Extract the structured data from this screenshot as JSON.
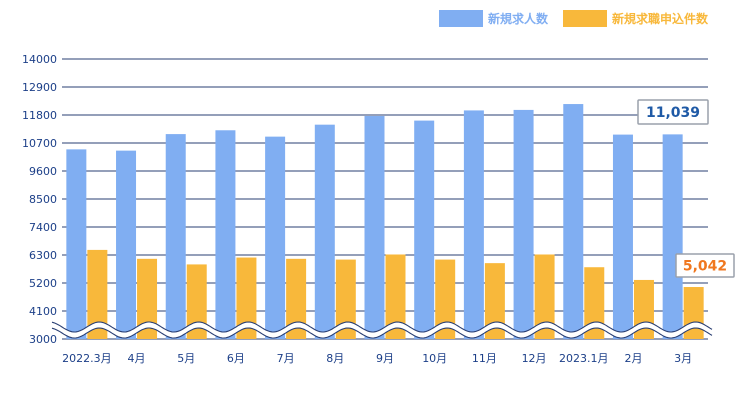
{
  "chart_data": {
    "type": "bar",
    "title": "",
    "xlabel": "",
    "ylabel": "",
    "categories": [
      "2022.3月",
      "4月",
      "5月",
      "6月",
      "7月",
      "8月",
      "9月",
      "10月",
      "11月",
      "12月",
      "2023.1月",
      "2月",
      "3月"
    ],
    "series": [
      {
        "name": "新規求人数",
        "color": "#80aef2",
        "values": [
          10450,
          10400,
          11050,
          11200,
          10950,
          11420,
          11760,
          11580,
          11980,
          12000,
          12230,
          11030,
          11039
        ]
      },
      {
        "name": "新規求職申込件数",
        "color": "#f8b83b",
        "values": [
          6500,
          6150,
          5930,
          6200,
          6150,
          6120,
          6320,
          6120,
          5980,
          6320,
          5820,
          5320,
          5042
        ]
      }
    ],
    "y_ticks": [
      "3000",
      "4100",
      "5200",
      "6300",
      "7400",
      "8500",
      "9600",
      "10700",
      "11800",
      "12900",
      "14000"
    ],
    "ylim": [
      3000,
      14000
    ],
    "axis_break": "wavy break between 3000 and 4100",
    "grid": "horizontal",
    "legend_position": "top-right",
    "callouts": [
      {
        "text": "11,039",
        "series": 0,
        "category": 12,
        "color": "#1f5aa6"
      },
      {
        "text": "5,042",
        "series": 1,
        "category": 12,
        "color": "#f0771f"
      }
    ]
  }
}
